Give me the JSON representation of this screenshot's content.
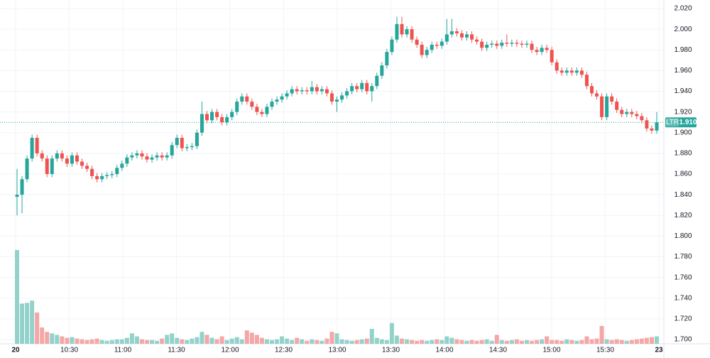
{
  "chart_data": {
    "type": "candlestick",
    "up_color": "#26a69a",
    "down_color": "#ef5350",
    "volume_up_color": "#93d2cb",
    "volume_down_color": "#f5a6a6",
    "grid": true,
    "ylim": [
      1.7,
      2.02
    ],
    "yticks": [
      {
        "value": 1.7,
        "label": "1.700"
      },
      {
        "value": 1.72,
        "label": "1.720"
      },
      {
        "value": 1.74,
        "label": "1.740"
      },
      {
        "value": 1.76,
        "label": "1.760"
      },
      {
        "value": 1.78,
        "label": "1.780"
      },
      {
        "value": 1.8,
        "label": "1.800"
      },
      {
        "value": 1.82,
        "label": "1.820"
      },
      {
        "value": 1.84,
        "label": "1.840"
      },
      {
        "value": 1.86,
        "label": "1.860"
      },
      {
        "value": 1.88,
        "label": "1.880"
      },
      {
        "value": 1.9,
        "label": "1.900"
      },
      {
        "value": 1.92,
        "label": "1.920"
      },
      {
        "value": 1.94,
        "label": "1.940"
      },
      {
        "value": 1.96,
        "label": "1.960"
      },
      {
        "value": 1.98,
        "label": "1.980"
      },
      {
        "value": 2.0,
        "label": "2.000"
      },
      {
        "value": 2.02,
        "label": "2.020"
      }
    ],
    "xtick_labels": [
      "20",
      "10:30",
      "11:00",
      "11:30",
      "12:00",
      "12:30",
      "13:00",
      "13:30",
      "14:00",
      "14:30",
      "15:00",
      "15:30",
      "23"
    ],
    "last_price": {
      "symbol": "LTR",
      "value": 1.91,
      "label": "1.910"
    },
    "open": [
      1.838,
      1.84,
      1.855,
      1.875,
      1.895,
      1.88,
      1.875,
      1.86,
      1.875,
      1.88,
      1.875,
      1.87,
      1.878,
      1.872,
      1.868,
      1.865,
      1.858,
      1.855,
      1.858,
      1.859,
      1.86,
      1.866,
      1.87,
      1.876,
      1.878,
      1.88,
      1.877,
      1.874,
      1.876,
      1.878,
      1.876,
      1.878,
      1.888,
      1.895,
      1.885,
      1.886,
      1.887,
      1.9,
      1.918,
      1.912,
      1.92,
      1.915,
      1.91,
      1.915,
      1.92,
      1.93,
      1.935,
      1.93,
      1.925,
      1.92,
      1.918,
      1.925,
      1.93,
      1.932,
      1.935,
      1.938,
      1.942,
      1.94,
      1.941,
      1.94,
      1.944,
      1.94,
      1.942,
      1.938,
      1.93,
      1.932,
      1.936,
      1.94,
      1.945,
      1.942,
      1.948,
      1.94,
      1.945,
      1.955,
      1.965,
      1.978,
      1.99,
      2.005,
      1.995,
      2.0,
      1.99,
      1.985,
      1.975,
      1.98,
      1.985,
      1.984,
      1.988,
      1.995,
      1.998,
      1.996,
      1.992,
      1.995,
      1.99,
      1.988,
      1.982,
      1.985,
      1.986,
      1.984,
      1.987,
      1.986,
      1.987,
      1.986,
      1.985,
      1.986,
      1.98,
      1.978,
      1.982,
      1.98,
      1.968,
      1.96,
      1.958,
      1.96,
      1.958,
      1.96,
      1.956,
      1.945,
      1.938,
      1.935,
      1.915,
      1.935,
      1.93,
      1.922,
      1.918,
      1.92,
      1.918,
      1.916,
      1.912,
      1.904,
      1.902
    ],
    "high": [
      1.865,
      1.858,
      1.878,
      1.898,
      1.898,
      1.883,
      1.878,
      1.878,
      1.883,
      1.883,
      1.878,
      1.881,
      1.881,
      1.875,
      1.871,
      1.868,
      1.861,
      1.861,
      1.862,
      1.863,
      1.869,
      1.873,
      1.879,
      1.881,
      1.883,
      1.883,
      1.88,
      1.879,
      1.881,
      1.881,
      1.881,
      1.891,
      1.898,
      1.898,
      1.889,
      1.89,
      1.903,
      1.93,
      1.921,
      1.923,
      1.923,
      1.918,
      1.918,
      1.923,
      1.933,
      1.938,
      1.938,
      1.933,
      1.928,
      1.923,
      1.928,
      1.933,
      1.935,
      1.938,
      1.941,
      1.945,
      1.945,
      1.944,
      1.944,
      1.95,
      1.947,
      1.945,
      1.945,
      1.941,
      1.935,
      1.939,
      1.943,
      1.948,
      1.948,
      1.951,
      1.951,
      1.948,
      1.958,
      1.968,
      1.981,
      1.993,
      2.012,
      2.012,
      2.003,
      2.003,
      1.993,
      1.988,
      1.983,
      1.988,
      1.988,
      1.991,
      2.01,
      2.01,
      2.001,
      1.999,
      1.998,
      1.998,
      1.993,
      1.991,
      1.988,
      1.989,
      1.989,
      1.99,
      1.995,
      1.99,
      1.99,
      1.989,
      1.989,
      1.989,
      1.983,
      1.985,
      1.985,
      1.983,
      1.971,
      1.963,
      1.963,
      1.963,
      1.963,
      1.963,
      1.959,
      1.948,
      1.941,
      1.938,
      1.938,
      1.938,
      1.933,
      1.925,
      1.923,
      1.923,
      1.921,
      1.919,
      1.915,
      1.907,
      1.92
    ],
    "low": [
      1.82,
      1.822,
      1.852,
      1.872,
      1.877,
      1.872,
      1.857,
      1.857,
      1.872,
      1.872,
      1.867,
      1.867,
      1.869,
      1.865,
      1.862,
      1.855,
      1.852,
      1.852,
      1.855,
      1.856,
      1.857,
      1.863,
      1.867,
      1.873,
      1.875,
      1.874,
      1.871,
      1.871,
      1.873,
      1.873,
      1.873,
      1.875,
      1.885,
      1.882,
      1.882,
      1.883,
      1.884,
      1.897,
      1.909,
      1.909,
      1.912,
      1.907,
      1.907,
      1.912,
      1.917,
      1.927,
      1.927,
      1.922,
      1.917,
      1.915,
      1.915,
      1.922,
      1.927,
      1.929,
      1.932,
      1.935,
      1.937,
      1.937,
      1.937,
      1.937,
      1.937,
      1.937,
      1.935,
      1.927,
      1.92,
      1.929,
      1.933,
      1.937,
      1.939,
      1.939,
      1.937,
      1.93,
      1.942,
      1.952,
      1.962,
      1.975,
      1.987,
      1.992,
      1.992,
      1.987,
      1.982,
      1.972,
      1.972,
      1.977,
      1.981,
      1.981,
      1.985,
      1.992,
      1.993,
      1.989,
      1.989,
      1.987,
      1.985,
      1.979,
      1.979,
      1.982,
      1.981,
      1.981,
      1.983,
      1.983,
      1.983,
      1.982,
      1.982,
      1.977,
      1.975,
      1.975,
      1.977,
      1.965,
      1.957,
      1.955,
      1.955,
      1.955,
      1.955,
      1.953,
      1.942,
      1.935,
      1.932,
      1.912,
      1.912,
      1.927,
      1.919,
      1.915,
      1.915,
      1.915,
      1.913,
      1.909,
      1.901,
      1.899,
      1.899
    ],
    "close": [
      1.84,
      1.855,
      1.875,
      1.895,
      1.88,
      1.875,
      1.86,
      1.875,
      1.88,
      1.875,
      1.87,
      1.878,
      1.872,
      1.868,
      1.865,
      1.858,
      1.855,
      1.858,
      1.859,
      1.86,
      1.866,
      1.87,
      1.876,
      1.878,
      1.88,
      1.877,
      1.874,
      1.876,
      1.878,
      1.876,
      1.878,
      1.888,
      1.895,
      1.885,
      1.886,
      1.887,
      1.9,
      1.918,
      1.912,
      1.92,
      1.915,
      1.91,
      1.915,
      1.92,
      1.93,
      1.935,
      1.93,
      1.925,
      1.92,
      1.918,
      1.925,
      1.93,
      1.932,
      1.935,
      1.938,
      1.942,
      1.94,
      1.941,
      1.94,
      1.944,
      1.94,
      1.942,
      1.938,
      1.93,
      1.932,
      1.936,
      1.94,
      1.945,
      1.942,
      1.948,
      1.94,
      1.945,
      1.955,
      1.965,
      1.978,
      1.99,
      2.005,
      1.995,
      2.0,
      1.99,
      1.985,
      1.975,
      1.98,
      1.985,
      1.984,
      1.988,
      1.995,
      1.998,
      1.996,
      1.992,
      1.995,
      1.99,
      1.988,
      1.982,
      1.985,
      1.986,
      1.984,
      1.987,
      1.986,
      1.987,
      1.986,
      1.985,
      1.986,
      1.98,
      1.978,
      1.982,
      1.98,
      1.968,
      1.96,
      1.958,
      1.96,
      1.958,
      1.96,
      1.956,
      1.945,
      1.938,
      1.935,
      1.915,
      1.935,
      1.93,
      1.922,
      1.918,
      1.92,
      1.918,
      1.916,
      1.912,
      1.904,
      1.902,
      1.91
    ],
    "volume": [
      126,
      54,
      55,
      58,
      42,
      22,
      16,
      14,
      12,
      10,
      8,
      9,
      7,
      6,
      5,
      6,
      7,
      5,
      4,
      5,
      6,
      6,
      8,
      14,
      10,
      6,
      5,
      5,
      4,
      7,
      12,
      14,
      8,
      6,
      5,
      7,
      9,
      16,
      12,
      8,
      6,
      10,
      5,
      7,
      9,
      6,
      18,
      15,
      12,
      8,
      6,
      5,
      6,
      10,
      7,
      5,
      8,
      6,
      4,
      6,
      5,
      4,
      7,
      16,
      14,
      6,
      5,
      4,
      5,
      6,
      7,
      20,
      8,
      6,
      5,
      28,
      11,
      7,
      6,
      5,
      4,
      5,
      4,
      5,
      6,
      5,
      10,
      8,
      6,
      5,
      4,
      5,
      4,
      5,
      6,
      4,
      12,
      5,
      4,
      5,
      6,
      4,
      5,
      4,
      5,
      6,
      10,
      5,
      5,
      4,
      6,
      5,
      4,
      5,
      10,
      6,
      7,
      24,
      6,
      5,
      6,
      5,
      4,
      5,
      6,
      7,
      8,
      9,
      10
    ]
  }
}
